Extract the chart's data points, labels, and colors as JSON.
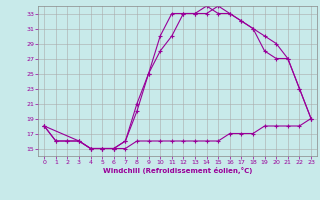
{
  "background_color": "#c8eaea",
  "grid_color": "#aaaaaa",
  "line_color": "#990099",
  "marker": "+",
  "xlim": [
    -0.5,
    23.5
  ],
  "ylim": [
    14,
    34
  ],
  "xticks": [
    0,
    1,
    2,
    3,
    4,
    5,
    6,
    7,
    8,
    9,
    10,
    11,
    12,
    13,
    14,
    15,
    16,
    17,
    18,
    19,
    20,
    21,
    22,
    23
  ],
  "yticks": [
    15,
    17,
    19,
    21,
    23,
    25,
    27,
    29,
    31,
    33
  ],
  "xlabel": "Windchill (Refroidissement éolien,°C)",
  "series": [
    {
      "x": [
        0,
        1,
        2,
        3,
        4,
        5,
        6,
        7,
        8,
        9,
        10,
        11,
        12,
        13,
        14,
        15,
        16,
        17,
        18,
        19,
        20,
        21,
        22,
        23
      ],
      "y": [
        18,
        16,
        16,
        16,
        15,
        15,
        15,
        15,
        16,
        16,
        16,
        16,
        16,
        16,
        16,
        16,
        17,
        17,
        17,
        18,
        18,
        18,
        18,
        19
      ]
    },
    {
      "x": [
        0,
        1,
        2,
        3,
        4,
        5,
        6,
        7,
        8,
        9,
        10,
        11,
        12,
        13,
        14,
        15,
        16,
        17,
        18,
        19,
        20,
        21,
        22,
        23
      ],
      "y": [
        18,
        16,
        16,
        16,
        15,
        15,
        15,
        16,
        21,
        25,
        30,
        33,
        33,
        33,
        34,
        33,
        33,
        32,
        31,
        28,
        27,
        27,
        23,
        19
      ]
    },
    {
      "x": [
        0,
        3,
        4,
        5,
        6,
        7,
        8,
        9,
        10,
        11,
        12,
        13,
        14,
        15,
        16,
        17,
        18,
        19,
        20,
        21,
        22,
        23
      ],
      "y": [
        18,
        16,
        15,
        15,
        15,
        16,
        20,
        25,
        28,
        30,
        33,
        33,
        33,
        34,
        33,
        32,
        31,
        30,
        29,
        27,
        23,
        19
      ]
    }
  ]
}
